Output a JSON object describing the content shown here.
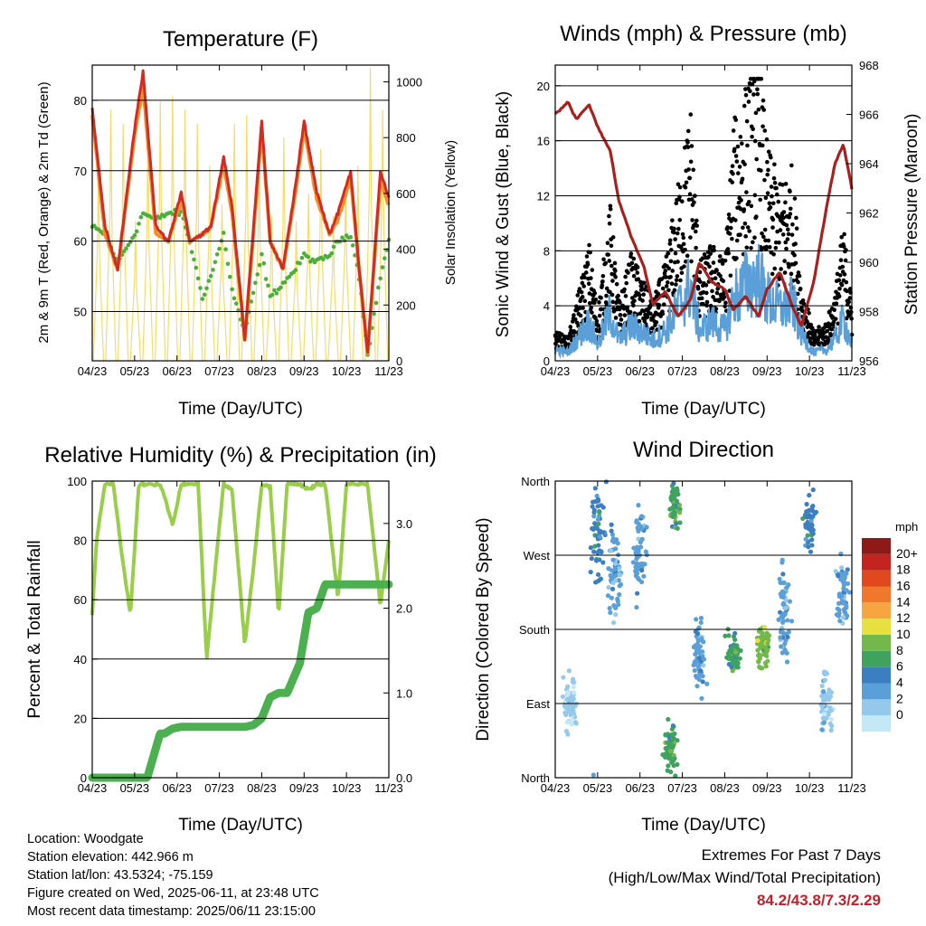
{
  "x_ticks": [
    "04/23",
    "05/23",
    "06/23",
    "07/23",
    "08/23",
    "09/23",
    "10/23",
    "11/23"
  ],
  "x_label": "Time (Day/UTC)",
  "colors": {
    "temp_red": "#d42a24",
    "temp_orange": "#f0922b",
    "dewpoint_green": "#4caf3c",
    "insolation_yellow": "#f5dc6a",
    "wind_blue": "#5a9fd8",
    "gust_black": "#000000",
    "pressure_maroon": "#a8201e",
    "rh_lightgreen": "#9acd4a",
    "precip_green": "#4caf50",
    "extremes_red": "#c41e2a"
  },
  "chart_data": [
    {
      "type": "line",
      "title": "Temperature (F)",
      "xlabel": "Time (Day/UTC)",
      "ylabel": "2m & 9m T (Red, Orange) & 2m Td (Green)",
      "ylabel_right": "Solar Insolation (Yellow)",
      "ylim": [
        43,
        85
      ],
      "ylim_right": [
        0,
        1060
      ],
      "yticks": [
        50,
        60,
        70,
        80
      ],
      "yticks_right": [
        0,
        200,
        400,
        600,
        800,
        1000
      ],
      "x": [
        0,
        0.3,
        0.6,
        1,
        1.2,
        1.5,
        1.8,
        2.1,
        2.3,
        2.6,
        2.8,
        3.1,
        3.3,
        3.6,
        4,
        4.2,
        4.5,
        4.8,
        5,
        5.3,
        5.6,
        5.8,
        6.1,
        6.3,
        6.5,
        6.8,
        7
      ],
      "series": [
        {
          "name": "2m T",
          "color": "#d42a24",
          "values": [
            79,
            62,
            56,
            76,
            84,
            62,
            60,
            67,
            60,
            61,
            62,
            72,
            65,
            46,
            77,
            60,
            56,
            68,
            77,
            67,
            61,
            64,
            70,
            56,
            44,
            70,
            66
          ]
        },
        {
          "name": "9m T",
          "color": "#f0922b",
          "values": [
            78,
            61,
            56,
            75,
            82,
            61,
            60,
            66,
            60,
            61,
            62,
            71,
            64,
            46,
            76,
            60,
            56,
            67,
            76,
            66,
            61,
            63,
            69,
            56,
            44,
            69,
            65
          ]
        },
        {
          "name": "2m Td",
          "color": "#4caf3c",
          "values": [
            62,
            61,
            57,
            61,
            64,
            63,
            64,
            64,
            60,
            52,
            55,
            61,
            53,
            47,
            58,
            52,
            54,
            56,
            58,
            57,
            58,
            60,
            61,
            55,
            44,
            55,
            60
          ]
        },
        {
          "name": "Solar Insolation",
          "color": "#f5dc6a",
          "axis": "right",
          "peaks": [
            700,
            900,
            850,
            500,
            800,
            930,
            950,
            900,
            850,
            700,
            560,
            850,
            880,
            780,
            520,
            800,
            500,
            600,
            760,
            520,
            650,
            700,
            1050,
            900
          ]
        }
      ]
    },
    {
      "type": "scatter",
      "title": "Winds (mph) & Pressure (mb)",
      "xlabel": "Time (Day/UTC)",
      "ylabel": "Sonic Wind & Gust (Blue, Black)",
      "ylabel_right": "Station Pressure (Maroon)",
      "ylim": [
        0,
        21.5
      ],
      "ylim_right": [
        956,
        968
      ],
      "yticks": [
        0,
        4,
        8,
        12,
        16,
        20
      ],
      "yticks_right": [
        956,
        958,
        960,
        962,
        964,
        966,
        968
      ],
      "x": [
        0,
        0.3,
        0.5,
        0.8,
        1,
        1.3,
        1.5,
        1.8,
        2.1,
        2.3,
        2.6,
        2.9,
        3.2,
        3.4,
        3.7,
        4,
        4.2,
        4.5,
        4.8,
        5,
        5.3,
        5.6,
        5.8,
        6.1,
        6.4,
        6.6,
        6.8,
        7
      ],
      "series": [
        {
          "name": "Gust",
          "color": "#000000",
          "values": [
            1.5,
            1.2,
            3,
            6,
            2.5,
            8,
            3,
            5.5,
            4,
            3,
            5,
            9,
            13,
            5,
            6,
            5,
            12,
            14,
            16,
            11,
            9,
            10,
            4,
            1.5,
            2,
            3.5,
            7,
            3
          ]
        },
        {
          "name": "Sonic Wind",
          "color": "#5a9fd8",
          "values": [
            0.8,
            0.6,
            1.5,
            2.8,
            1.2,
            3.5,
            1.5,
            2.5,
            2,
            1.5,
            2.2,
            3.8,
            5.5,
            2.2,
            2.8,
            2.2,
            4.5,
            5.5,
            6,
            4.5,
            3.8,
            4.2,
            2,
            0.6,
            0.8,
            1.6,
            3,
            1.2
          ]
        },
        {
          "name": "Station Pressure",
          "color": "#a8201e",
          "axis": "right",
          "values": [
            966,
            966.5,
            965.8,
            966.4,
            965.5,
            964.5,
            962.5,
            961,
            959.8,
            958.3,
            958.8,
            957.8,
            958.5,
            960,
            959.2,
            958.9,
            958.1,
            958.6,
            957.8,
            958.9,
            959.6,
            958.2,
            957.4,
            959.2,
            962.2,
            964,
            964.8,
            963
          ]
        }
      ]
    },
    {
      "type": "line",
      "title": "Relative Humidity (%) & Precipitation (in)",
      "xlabel": "Time (Day/UTC)",
      "ylabel": "Percent & Total Rainfall",
      "ylim": [
        0,
        100
      ],
      "ylim_right": [
        0,
        3.5
      ],
      "yticks": [
        0,
        20,
        40,
        60,
        80,
        100
      ],
      "yticks_right": [
        "0.0",
        "1.0",
        "2.0",
        "3.0"
      ],
      "x": [
        0,
        0.1,
        0.3,
        0.5,
        0.7,
        0.9,
        1.1,
        1.3,
        1.6,
        1.7,
        1.9,
        2.1,
        2.3,
        2.5,
        2.7,
        2.9,
        3.1,
        3.3,
        3.6,
        3.8,
        4.0,
        4.2,
        4.4,
        4.6,
        4.9,
        5.1,
        5.3,
        5.5,
        5.8,
        6.0,
        6.2,
        6.5,
        6.8,
        7
      ],
      "series": [
        {
          "name": "Relative Humidity",
          "color": "#9acd4a",
          "values": [
            55,
            80,
            99,
            99,
            75,
            55,
            99,
            99,
            99,
            95,
            85,
            99,
            99,
            99,
            40,
            70,
            99,
            97,
            45,
            70,
            99,
            98,
            55,
            99,
            99,
            97,
            99,
            99,
            60,
            99,
            99,
            99,
            58,
            80
          ]
        },
        {
          "name": "Total Precipitation",
          "color": "#4caf50",
          "axis": "right",
          "values": [
            0,
            0,
            0,
            0,
            0,
            0,
            0,
            0,
            0.52,
            0.52,
            0.58,
            0.6,
            0.6,
            0.6,
            0.6,
            0.6,
            0.6,
            0.6,
            0.6,
            0.62,
            0.7,
            0.95,
            1.0,
            1.0,
            1.35,
            1.95,
            2.0,
            2.28,
            2.28,
            2.28,
            2.28,
            2.28,
            2.28,
            2.28
          ]
        }
      ]
    },
    {
      "type": "scatter",
      "title": "Wind Direction",
      "xlabel": "Time (Day/UTC)",
      "ylabel": "Direction (Colored By Speed)",
      "ylim": [
        0,
        360
      ],
      "yticks": [
        "North",
        "East",
        "South",
        "West",
        "North"
      ],
      "colorbar_unit": "mph",
      "colorbar_labels": [
        "0",
        "2",
        "4",
        "6",
        "8",
        "10",
        "12",
        "14",
        "16",
        "18",
        "20+"
      ],
      "colorbar_colors": [
        "#c5e8f7",
        "#94c9ec",
        "#5a9fd8",
        "#3c7fc0",
        "#3fa35e",
        "#72b84a",
        "#e6e040",
        "#f5a640",
        "#f0782a",
        "#e0481e",
        "#c42420",
        "#8e1a18"
      ],
      "clusters": [
        {
          "x": 0.35,
          "y": 90,
          "spread": 50,
          "speed": 1
        },
        {
          "x": 1.0,
          "y": 300,
          "spread": 80,
          "speed": 3
        },
        {
          "x": 1.4,
          "y": 250,
          "spread": 90,
          "speed": 2
        },
        {
          "x": 2.0,
          "y": 280,
          "spread": 80,
          "speed": 2
        },
        {
          "x": 2.8,
          "y": 330,
          "spread": 40,
          "speed": 4
        },
        {
          "x": 2.7,
          "y": 40,
          "spread": 40,
          "speed": 4
        },
        {
          "x": 3.4,
          "y": 150,
          "spread": 60,
          "speed": 2
        },
        {
          "x": 4.2,
          "y": 150,
          "spread": 40,
          "speed": 4
        },
        {
          "x": 4.9,
          "y": 160,
          "spread": 40,
          "speed": 5
        },
        {
          "x": 5.4,
          "y": 200,
          "spread": 80,
          "speed": 2
        },
        {
          "x": 6.0,
          "y": 310,
          "spread": 50,
          "speed": 3
        },
        {
          "x": 6.4,
          "y": 90,
          "spread": 60,
          "speed": 1
        },
        {
          "x": 6.8,
          "y": 220,
          "spread": 60,
          "speed": 2
        }
      ]
    }
  ],
  "meta": {
    "location": "Location: Woodgate",
    "elevation": "Station elevation: 442.966 m",
    "latlon": "Station lat/lon: 43.5324; -75.159",
    "created": "Figure created on Wed, 2025-06-11, at 23:48 UTC",
    "recent": "Most recent data timestamp: 2025/06/11 23:15:00"
  },
  "extremes": {
    "line1": "Extremes For Past 7 Days",
    "line2": "(High/Low/Max Wind/Total Precipitation)",
    "values": "84.2/43.8/7.3/2.29"
  }
}
